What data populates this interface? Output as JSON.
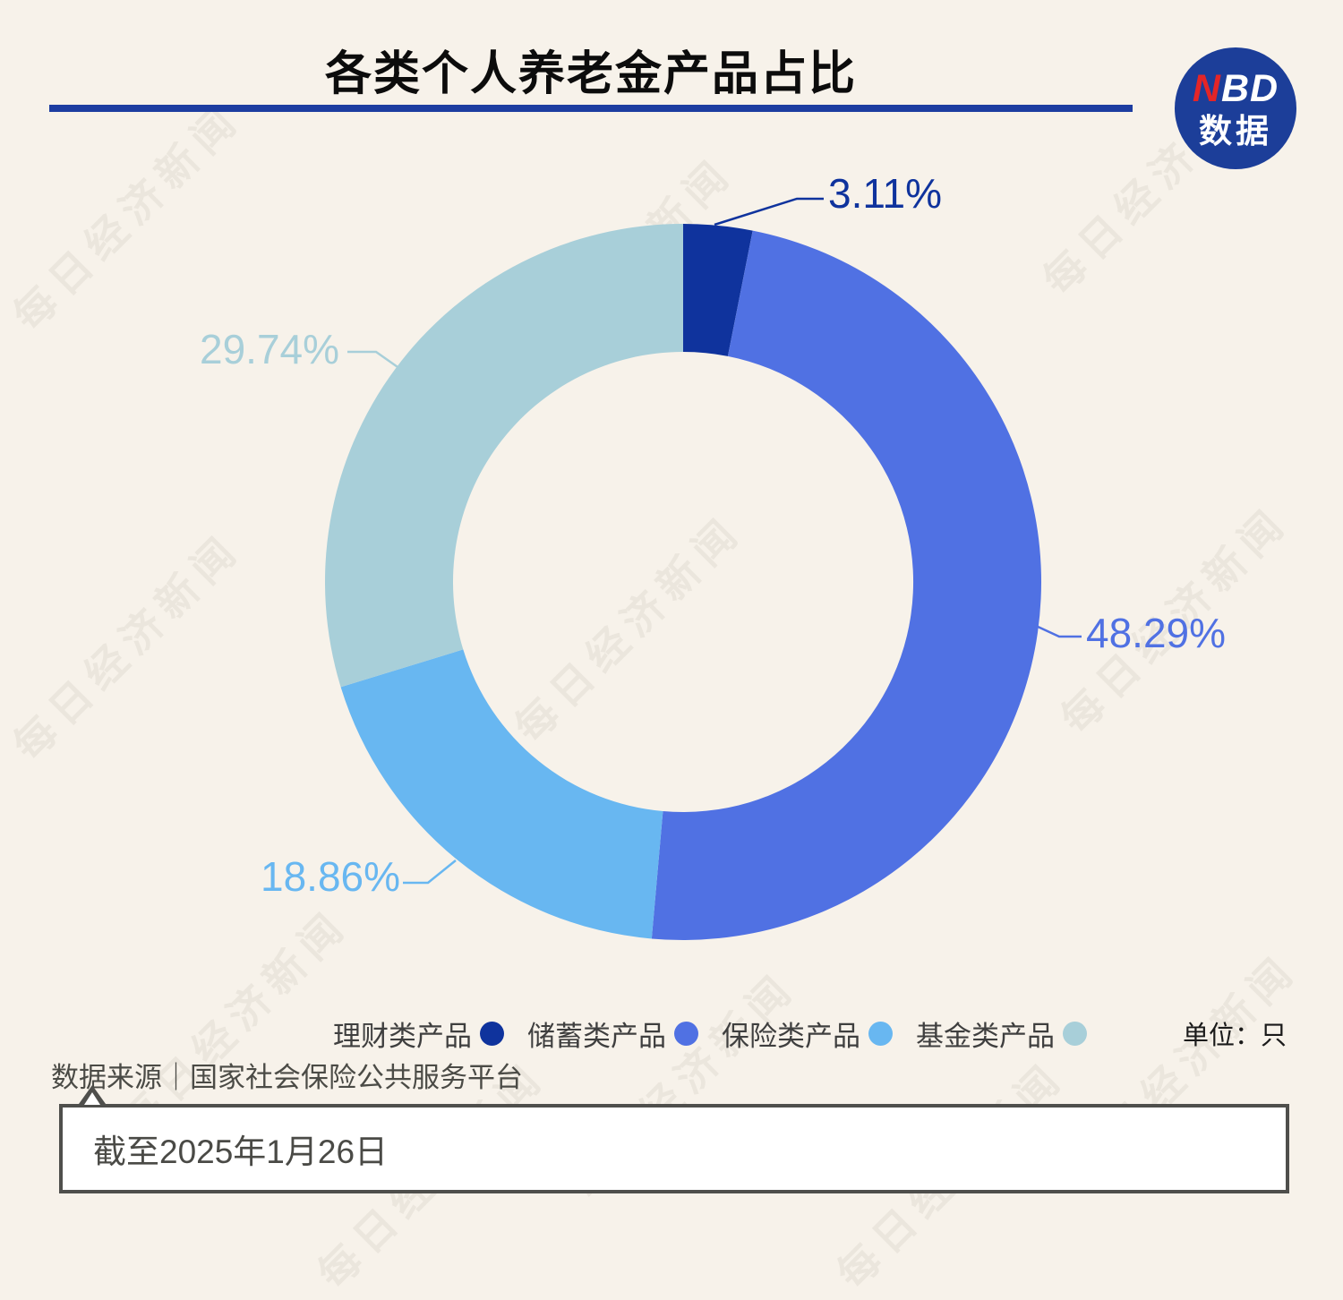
{
  "page": {
    "background": "#f7f2ea",
    "watermark_text": "每日经济新闻"
  },
  "header": {
    "title": "各类个人养老金产品占比",
    "underline_color": "#1d3da1",
    "logo": {
      "bg_color": "#1c3e99",
      "accent_color": "#e42527",
      "line1_red": "N",
      "line1_rest": "BD",
      "line2": "数据"
    }
  },
  "chart_data": {
    "type": "pie",
    "subtype": "donut",
    "title": "各类个人养老金产品占比",
    "unit": "只",
    "start_angle_deg": 0,
    "direction": "clockwise",
    "categories": [
      "理财类产品",
      "储蓄类产品",
      "保险类产品",
      "基金类产品"
    ],
    "values": [
      3.11,
      48.29,
      18.86,
      29.74
    ],
    "slices": [
      {
        "name": "理财类产品",
        "value": 3.11,
        "label": "3.11%",
        "color": "#0f339d"
      },
      {
        "name": "储蓄类产品",
        "value": 48.29,
        "label": "48.29%",
        "color": "#5071e3"
      },
      {
        "name": "保险类产品",
        "value": 18.86,
        "label": "18.86%",
        "color": "#68b7f1"
      },
      {
        "name": "基金类产品",
        "value": 29.74,
        "label": "29.74%",
        "color": "#a8cfd9"
      }
    ],
    "legend_position": "bottom"
  },
  "footer": {
    "unit_label": "单位：只",
    "source": "数据来源｜国家社会保险公共服务平台",
    "note": "截至2025年1月26日"
  }
}
